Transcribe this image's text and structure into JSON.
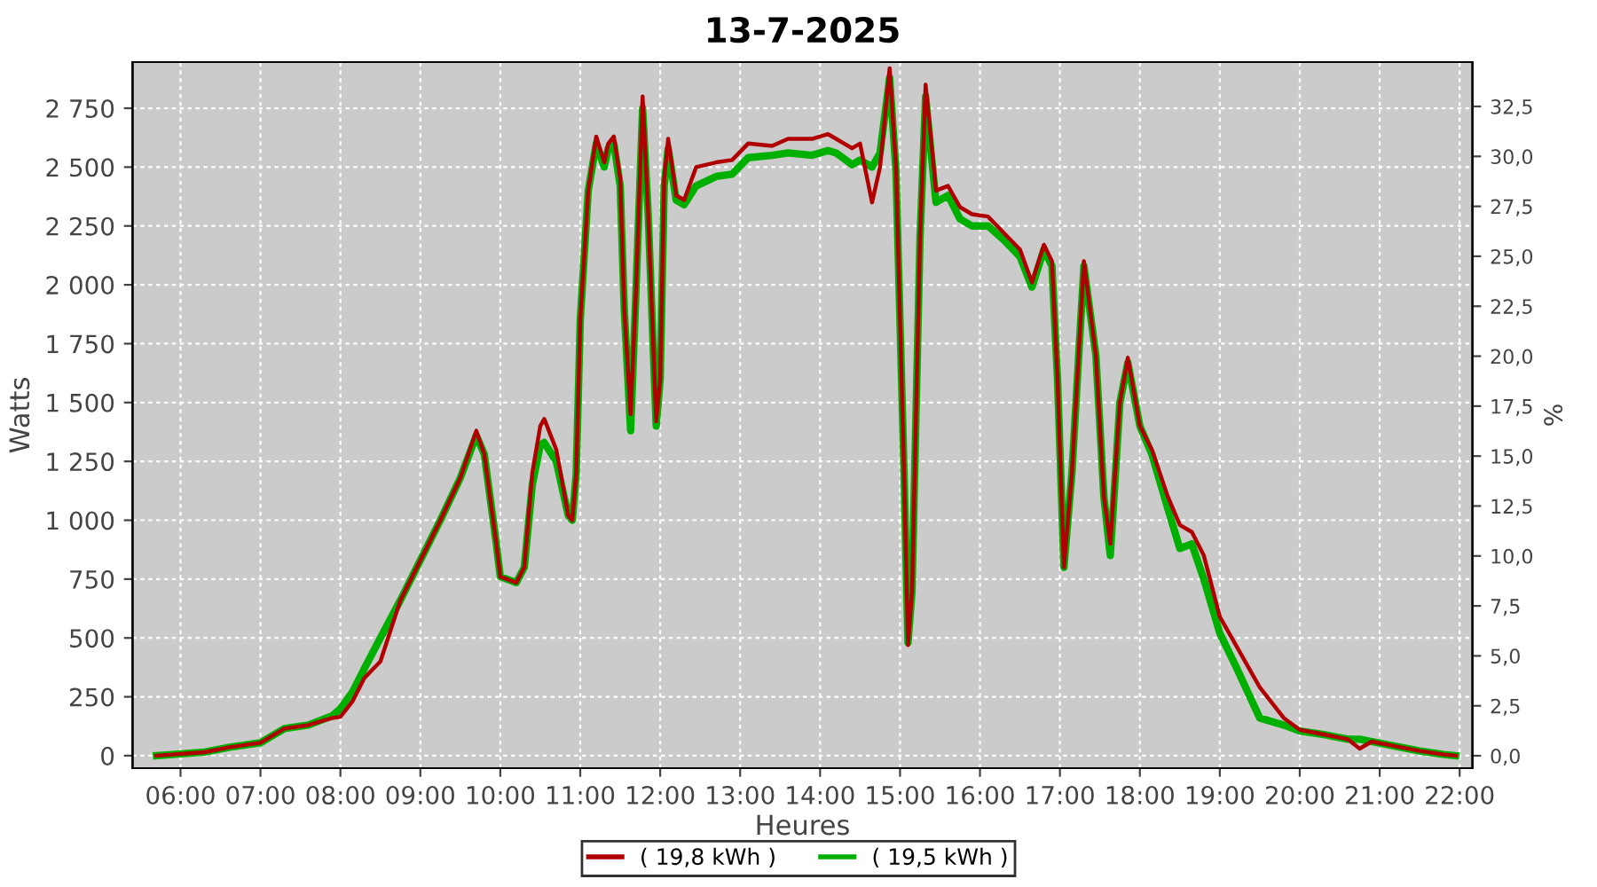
{
  "chart_data": {
    "type": "line",
    "title": "13-7-2025",
    "xlabel": "Heures",
    "ylabel": "Watts",
    "y2label": "%",
    "xlim": [
      5.4,
      22.16
    ],
    "xticks": [
      {
        "value": 6,
        "label": "06:00"
      },
      {
        "value": 7,
        "label": "07:00"
      },
      {
        "value": 8,
        "label": "08:00"
      },
      {
        "value": 9,
        "label": "09:00"
      },
      {
        "value": 10,
        "label": "10:00"
      },
      {
        "value": 11,
        "label": "11:00"
      },
      {
        "value": 12,
        "label": "12:00"
      },
      {
        "value": 13,
        "label": "13:00"
      },
      {
        "value": 14,
        "label": "14:00"
      },
      {
        "value": 15,
        "label": "15:00"
      },
      {
        "value": 16,
        "label": "16:00"
      },
      {
        "value": 17,
        "label": "17:00"
      },
      {
        "value": 18,
        "label": "18:00"
      },
      {
        "value": 19,
        "label": "19:00"
      },
      {
        "value": 20,
        "label": "20:00"
      },
      {
        "value": 21,
        "label": "21:00"
      },
      {
        "value": 22,
        "label": "22:00"
      }
    ],
    "ylim": [
      -53,
      2946
    ],
    "yticks": [
      0,
      250,
      500,
      750,
      {
        "value": 1000,
        "label": "1 000"
      },
      {
        "value": 1250,
        "label": "1 250"
      },
      {
        "value": 1500,
        "label": "1 500"
      },
      {
        "value": 1750,
        "label": "1 750"
      },
      {
        "value": 2000,
        "label": "2 000"
      },
      {
        "value": 2250,
        "label": "2 250"
      },
      {
        "value": 2500,
        "label": "2 500"
      },
      {
        "value": 2750,
        "label": "2 750"
      }
    ],
    "y2lim": [
      -0.62,
      34.72
    ],
    "y2ticks": [
      {
        "value": 0,
        "label": "0,0"
      },
      {
        "value": 2.5,
        "label": "2,5"
      },
      {
        "value": 5,
        "label": "5,0"
      },
      {
        "value": 7.5,
        "label": "7,5"
      },
      {
        "value": 10,
        "label": "10,0"
      },
      {
        "value": 12.5,
        "label": "12,5"
      },
      {
        "value": 15,
        "label": "15,0"
      },
      {
        "value": 17.5,
        "label": "17,5"
      },
      {
        "value": 20,
        "label": "20,0"
      },
      {
        "value": 22.5,
        "label": "22,5"
      },
      {
        "value": 25,
        "label": "25,0"
      },
      {
        "value": 27.5,
        "label": "27,5"
      },
      {
        "value": 30,
        "label": "30,0"
      },
      {
        "value": 32.5,
        "label": "32,5"
      }
    ],
    "grid": true,
    "legend": "bottom",
    "marker": "none",
    "line_style": "solid",
    "x": [
      5.7,
      5.9,
      6.3,
      6.6,
      7.0,
      7.3,
      7.6,
      7.9,
      8.0,
      8.15,
      8.3,
      8.5,
      8.75,
      9.0,
      9.25,
      9.5,
      9.7,
      9.8,
      9.95,
      10.0,
      10.2,
      10.3,
      10.4,
      10.5,
      10.55,
      10.7,
      10.85,
      10.9,
      10.95,
      11.0,
      11.1,
      11.2,
      11.3,
      11.35,
      11.42,
      11.5,
      11.55,
      11.63,
      11.7,
      11.78,
      11.85,
      11.95,
      12.0,
      12.05,
      12.1,
      12.2,
      12.3,
      12.45,
      12.7,
      12.9,
      13.1,
      13.4,
      13.6,
      13.9,
      14.1,
      14.2,
      14.4,
      14.5,
      14.65,
      14.75,
      14.87,
      14.95,
      15.05,
      15.1,
      15.15,
      15.25,
      15.32,
      15.45,
      15.6,
      15.75,
      15.9,
      16.1,
      16.3,
      16.5,
      16.65,
      16.8,
      16.9,
      16.97,
      17.05,
      17.15,
      17.3,
      17.45,
      17.55,
      17.63,
      17.75,
      17.85,
      18.0,
      18.15,
      18.35,
      18.5,
      18.65,
      18.8,
      19.0,
      19.2,
      19.5,
      19.8,
      20.0,
      20.3,
      20.6,
      20.75,
      20.9,
      21.2,
      21.5,
      21.8,
      21.95
    ],
    "series": [
      {
        "name": "( 19,8 kWh )",
        "color": "#b00000",
        "values": [
          0,
          5,
          15,
          35,
          55,
          115,
          130,
          160,
          165,
          230,
          330,
          400,
          660,
          830,
          1000,
          1180,
          1380,
          1280,
          900,
          760,
          735,
          800,
          1200,
          1400,
          1430,
          1300,
          1020,
          1000,
          1200,
          1850,
          2400,
          2630,
          2520,
          2600,
          2630,
          2450,
          1900,
          1450,
          2000,
          2800,
          2300,
          1420,
          1600,
          2450,
          2620,
          2380,
          2360,
          2500,
          2520,
          2530,
          2600,
          2590,
          2620,
          2620,
          2640,
          2620,
          2580,
          2600,
          2350,
          2500,
          2920,
          2500,
          1200,
          470,
          700,
          2200,
          2850,
          2400,
          2420,
          2330,
          2300,
          2290,
          2220,
          2150,
          2010,
          2170,
          2100,
          1600,
          800,
          1200,
          2100,
          1700,
          1100,
          900,
          1500,
          1690,
          1400,
          1300,
          1100,
          980,
          950,
          850,
          590,
          470,
          290,
          160,
          110,
          90,
          70,
          30,
          60,
          40,
          20,
          5,
          0
        ]
      },
      {
        "name": "( 19,5 kWh )",
        "color": "#00b000",
        "values": [
          0,
          5,
          15,
          35,
          55,
          115,
          130,
          170,
          200,
          270,
          370,
          500,
          660,
          830,
          1000,
          1180,
          1360,
          1280,
          900,
          760,
          735,
          800,
          1150,
          1320,
          1330,
          1250,
          1020,
          1000,
          1200,
          1850,
          2400,
          2600,
          2500,
          2580,
          2600,
          2420,
          1900,
          1380,
          2000,
          2750,
          2300,
          1400,
          1600,
          2420,
          2580,
          2360,
          2340,
          2420,
          2460,
          2470,
          2540,
          2550,
          2560,
          2550,
          2570,
          2560,
          2510,
          2530,
          2500,
          2560,
          2880,
          2480,
          1200,
          480,
          700,
          2200,
          2800,
          2350,
          2380,
          2280,
          2250,
          2250,
          2190,
          2120,
          1990,
          2150,
          2080,
          1600,
          800,
          1200,
          2080,
          1700,
          1100,
          850,
          1500,
          1670,
          1400,
          1280,
          1050,
          880,
          900,
          750,
          520,
          380,
          160,
          130,
          105,
          90,
          70,
          70,
          60,
          40,
          20,
          5,
          0
        ]
      }
    ]
  }
}
